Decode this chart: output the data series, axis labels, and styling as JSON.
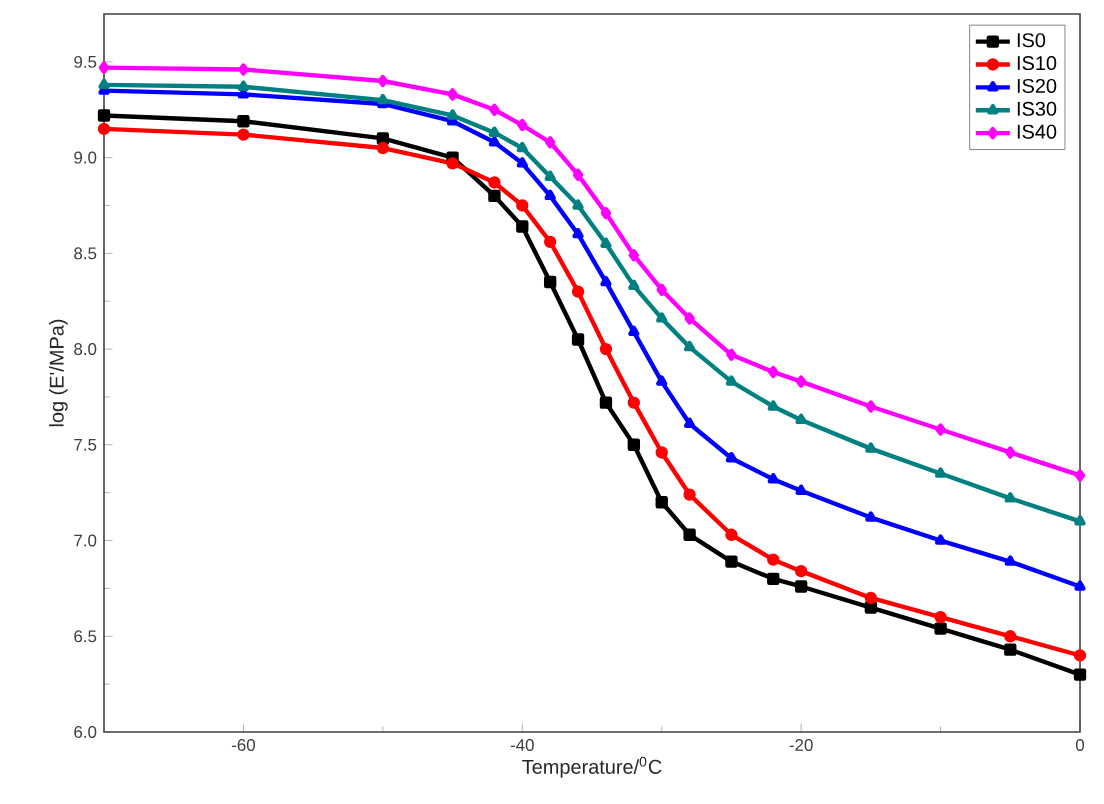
{
  "chart_data": {
    "type": "line",
    "xlabel": "Temperature/$^{0}$C",
    "ylabel": "log (E'/MPa)",
    "x": [
      -70,
      -60,
      -50,
      -45,
      -42,
      -40,
      -38,
      -36,
      -34,
      -32,
      -30,
      -28,
      -25,
      -22,
      -20,
      -15,
      -10,
      -5,
      0
    ],
    "series": [
      {
        "name": "IS0",
        "color": "#000000",
        "marker": "square",
        "values": [
          9.22,
          9.19,
          9.1,
          9.0,
          8.8,
          8.64,
          8.35,
          8.05,
          7.72,
          7.5,
          7.2,
          7.03,
          6.89,
          6.8,
          6.76,
          6.65,
          6.54,
          6.43,
          6.3
        ]
      },
      {
        "name": "IS10",
        "color": "#ff0000",
        "marker": "circle",
        "values": [
          9.15,
          9.12,
          9.05,
          8.97,
          8.87,
          8.75,
          8.56,
          8.3,
          8.0,
          7.72,
          7.46,
          7.24,
          7.03,
          6.9,
          6.84,
          6.7,
          6.6,
          6.5,
          6.4
        ]
      },
      {
        "name": "IS20",
        "color": "#0000ff",
        "marker": "triangle",
        "values": [
          9.35,
          9.33,
          9.28,
          9.19,
          9.08,
          8.97,
          8.8,
          8.6,
          8.35,
          8.09,
          7.83,
          7.61,
          7.43,
          7.32,
          7.26,
          7.12,
          7.0,
          6.89,
          6.76
        ]
      },
      {
        "name": "IS30",
        "color": "#008080",
        "marker": "triangle",
        "values": [
          9.38,
          9.37,
          9.3,
          9.22,
          9.13,
          9.05,
          8.9,
          8.75,
          8.55,
          8.33,
          8.16,
          8.01,
          7.83,
          7.7,
          7.63,
          7.48,
          7.35,
          7.22,
          7.1
        ]
      },
      {
        "name": "IS40",
        "color": "#ff00ff",
        "marker": "diamond",
        "values": [
          9.47,
          9.46,
          9.4,
          9.33,
          9.25,
          9.17,
          9.08,
          8.91,
          8.71,
          8.49,
          8.31,
          8.16,
          7.97,
          7.88,
          7.83,
          7.7,
          7.58,
          7.46,
          7.34
        ]
      }
    ],
    "xlim": [
      -70,
      0
    ],
    "xticks": [
      -60,
      -40,
      -20,
      0
    ],
    "ylim": [
      6.0,
      9.75
    ],
    "yticks": [
      {
        "value": 6.0,
        "label": "6.0"
      },
      {
        "value": 6.5,
        "label": "6.5"
      },
      {
        "value": 7.0,
        "label": "7.0"
      },
      {
        "value": 7.5,
        "label": "7.5"
      },
      {
        "value": 8.0,
        "label": "8.0"
      },
      {
        "value": 8.5,
        "label": "8.5"
      },
      {
        "value": 9.0,
        "label": "9.0"
      },
      {
        "value": 9.5,
        "label": "9.5"
      }
    ],
    "legend": "top right",
    "grid": false,
    "line_style": "solid"
  }
}
